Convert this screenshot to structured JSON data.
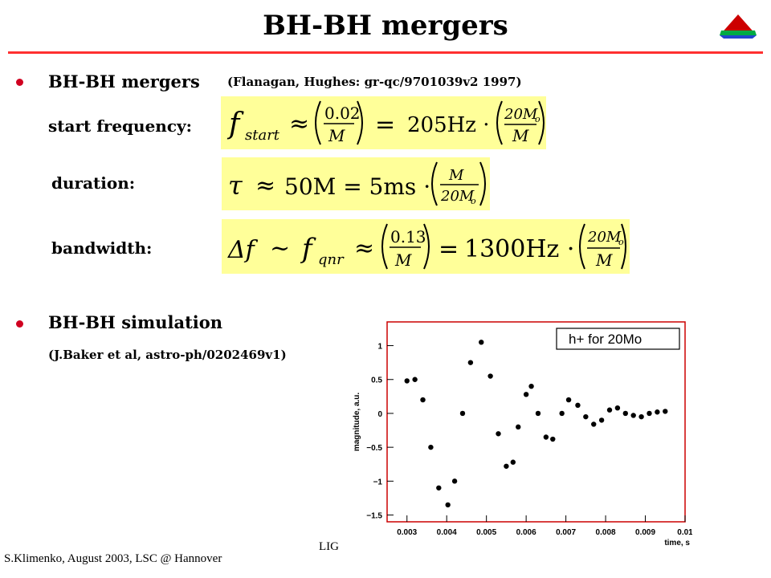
{
  "slide": {
    "title": "BH-BH mergers",
    "bullet1_head": "BH-BH mergers",
    "bullet1_ref": "(Flanagan, Hughes: gr-qc/9701039v2 1997)",
    "label_start": "start frequency:",
    "label_duration": "duration:",
    "label_bandwidth": "bandwidth:",
    "bullet2_head": "BH-BH simulation",
    "bullet2_ref": "(J.Baker et al, astro-ph/0202469v1)",
    "footer_left": "S.Klimenko, August 2003, LSC @ Hannover",
    "footer_mid": "LIG"
  },
  "equations": {
    "start": {
      "f": "f",
      "sub": "start",
      "approx": "≈",
      "n1": "0.02",
      "d1": "M",
      "eq": "=",
      "val": "205Hz ·",
      "n2": "20M",
      "n2sub": "o",
      "d2": "M"
    },
    "duration": {
      "tau": "τ",
      "approx": "≈",
      "mid": "50M = 5ms ·",
      "n": "M",
      "d": "20M",
      "dsub": "o"
    },
    "bandwidth": {
      "df": "Δf",
      "sim": "~",
      "f": "f",
      "sub": "qnr",
      "approx": "≈",
      "n1": "0.13",
      "d1": "M",
      "eq": "=",
      "val": "1300Hz ·",
      "n2": "20M",
      "n2sub": "o",
      "d2": "M"
    }
  },
  "colors": {
    "bullet": "#d00020",
    "rule": "#ff3030",
    "eq_bg": "#ffff99",
    "plot_frame": "#cc0000"
  },
  "chart_data": {
    "type": "scatter",
    "legend": "h+ for 20Mo",
    "legend_position": "top-right",
    "xlabel": "time, s",
    "ylabel": "magnitude, a.u.",
    "xlim": [
      0.0025,
      0.01
    ],
    "ylim": [
      -1.6,
      1.35
    ],
    "xticks": [
      0.003,
      0.004,
      0.005,
      0.006,
      0.007,
      0.008,
      0.009,
      0.01
    ],
    "xtick_labels": [
      "0.003",
      "0.004",
      "0.005",
      "0.006",
      "0.007",
      "0.008",
      "0.009",
      "0.01"
    ],
    "yticks": [
      -1.5,
      -1,
      -0.5,
      0,
      0.5,
      1
    ],
    "ytick_labels": [
      "−1.5",
      "−1",
      "−0.5",
      "0",
      "0.5",
      "1"
    ],
    "series": [
      {
        "x": [
          0.003,
          0.0032,
          0.0034,
          0.0036,
          0.0038,
          0.00403,
          0.0042,
          0.0044,
          0.0046,
          0.00487,
          0.0051,
          0.0053,
          0.0055,
          0.00567,
          0.0058,
          0.006,
          0.00613,
          0.0063,
          0.0065,
          0.00667,
          0.0069,
          0.00707,
          0.0073,
          0.0075,
          0.0077,
          0.0079,
          0.0081,
          0.0083,
          0.0085,
          0.0087,
          0.0089,
          0.0091,
          0.0093,
          0.0095
        ],
        "y": [
          0.48,
          0.5,
          0.2,
          -0.5,
          -1.1,
          -1.35,
          -1.0,
          0.0,
          0.75,
          1.05,
          0.55,
          -0.3,
          -0.78,
          -0.72,
          -0.2,
          0.28,
          0.4,
          0.0,
          -0.35,
          -0.38,
          0.0,
          0.2,
          0.12,
          -0.05,
          -0.16,
          -0.1,
          0.05,
          0.08,
          0.0,
          -0.03,
          -0.05,
          0.0,
          0.02,
          0.03
        ]
      }
    ]
  }
}
